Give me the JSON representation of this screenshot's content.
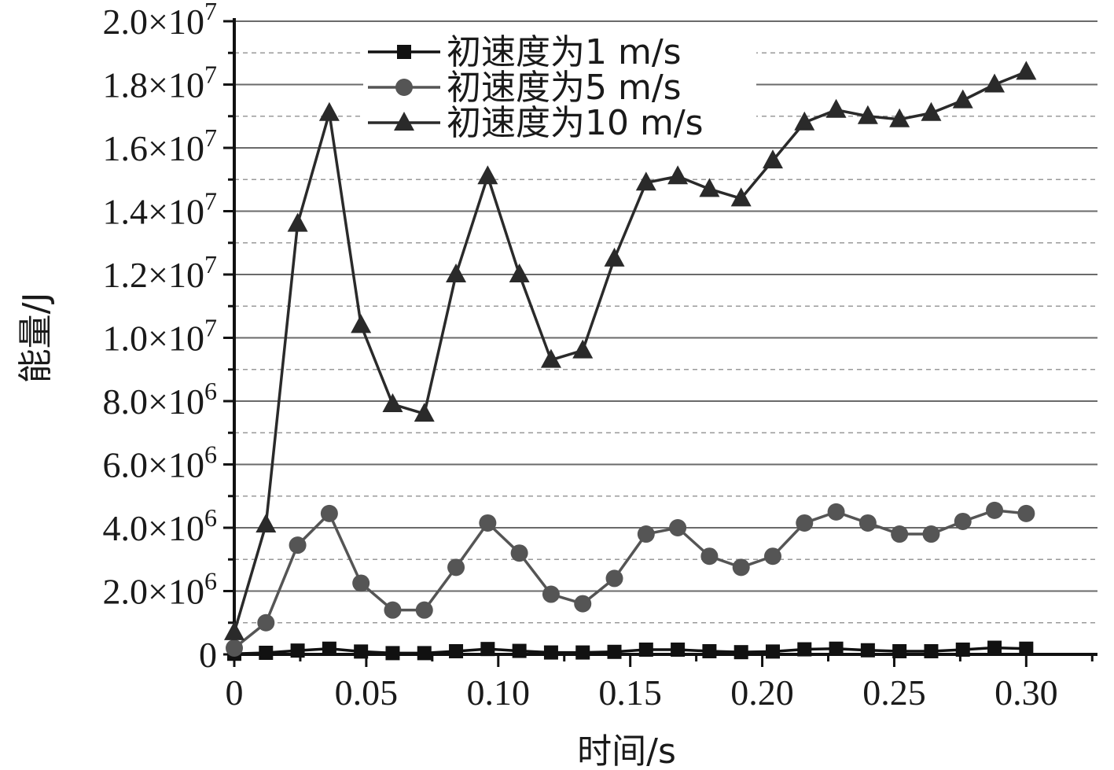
{
  "chart_data": {
    "type": "line",
    "xlabel": "时间/s",
    "ylabel": "能量/J",
    "xlim": [
      0,
      0.327
    ],
    "ylim": [
      0,
      20000000
    ],
    "x_ticks": [
      {
        "value": 0,
        "label": "0"
      },
      {
        "value": 0.05,
        "label": "0.05"
      },
      {
        "value": 0.1,
        "label": "0.10"
      },
      {
        "value": 0.15,
        "label": "0.15"
      },
      {
        "value": 0.2,
        "label": "0.20"
      },
      {
        "value": 0.25,
        "label": "0.25"
      },
      {
        "value": 0.3,
        "label": "0.30"
      }
    ],
    "y_ticks": [
      {
        "value": 0,
        "mantissa": "0",
        "exponent": ""
      },
      {
        "value": 2000000,
        "mantissa": "2.0×10",
        "exponent": "6"
      },
      {
        "value": 4000000,
        "mantissa": "4.0×10",
        "exponent": "6"
      },
      {
        "value": 6000000,
        "mantissa": "6.0×10",
        "exponent": "6"
      },
      {
        "value": 8000000,
        "mantissa": "8.0×10",
        "exponent": "6"
      },
      {
        "value": 10000000,
        "mantissa": "1.0×10",
        "exponent": "7"
      },
      {
        "value": 12000000,
        "mantissa": "1.2×10",
        "exponent": "7"
      },
      {
        "value": 14000000,
        "mantissa": "1.4×10",
        "exponent": "7"
      },
      {
        "value": 16000000,
        "mantissa": "1.6×10",
        "exponent": "7"
      },
      {
        "value": 18000000,
        "mantissa": "1.8×10",
        "exponent": "7"
      },
      {
        "value": 20000000,
        "mantissa": "2.0×10",
        "exponent": "7"
      }
    ],
    "grid": {
      "major": true,
      "minor_dashed": true
    },
    "legend_position": "top-center",
    "x": [
      0,
      0.012,
      0.024,
      0.036,
      0.048,
      0.06,
      0.072,
      0.084,
      0.096,
      0.108,
      0.12,
      0.132,
      0.144,
      0.156,
      0.168,
      0.18,
      0.192,
      0.204,
      0.216,
      0.228,
      0.24,
      0.252,
      0.264,
      0.276,
      0.288,
      0.3
    ],
    "series": [
      {
        "name": "初速度为1 m/s",
        "marker": "square",
        "color": "#111111",
        "values": [
          20000,
          50000,
          120000,
          180000,
          90000,
          40000,
          40000,
          100000,
          170000,
          110000,
          60000,
          60000,
          80000,
          150000,
          150000,
          100000,
          70000,
          90000,
          160000,
          180000,
          130000,
          100000,
          100000,
          150000,
          210000,
          180000
        ]
      },
      {
        "name": "初速度为5 m/s",
        "marker": "circle",
        "color": "#555555",
        "values": [
          200000,
          1000000,
          3450000,
          4450000,
          2250000,
          1400000,
          1400000,
          2750000,
          4150000,
          3200000,
          1900000,
          1600000,
          2400000,
          3800000,
          4000000,
          3100000,
          2750000,
          3100000,
          4150000,
          4500000,
          4150000,
          3800000,
          3800000,
          4200000,
          4550000,
          4450000
        ]
      },
      {
        "name": "初速度为10 m/s",
        "marker": "triangle",
        "color": "#2a2a2a",
        "values": [
          700000,
          4100000,
          13600000,
          17100000,
          10400000,
          7900000,
          7600000,
          12000000,
          15100000,
          12000000,
          9300000,
          9600000,
          12500000,
          14900000,
          15100000,
          14700000,
          14400000,
          15600000,
          16800000,
          17200000,
          17000000,
          16900000,
          17100000,
          17500000,
          18000000,
          18400000
        ]
      }
    ]
  }
}
